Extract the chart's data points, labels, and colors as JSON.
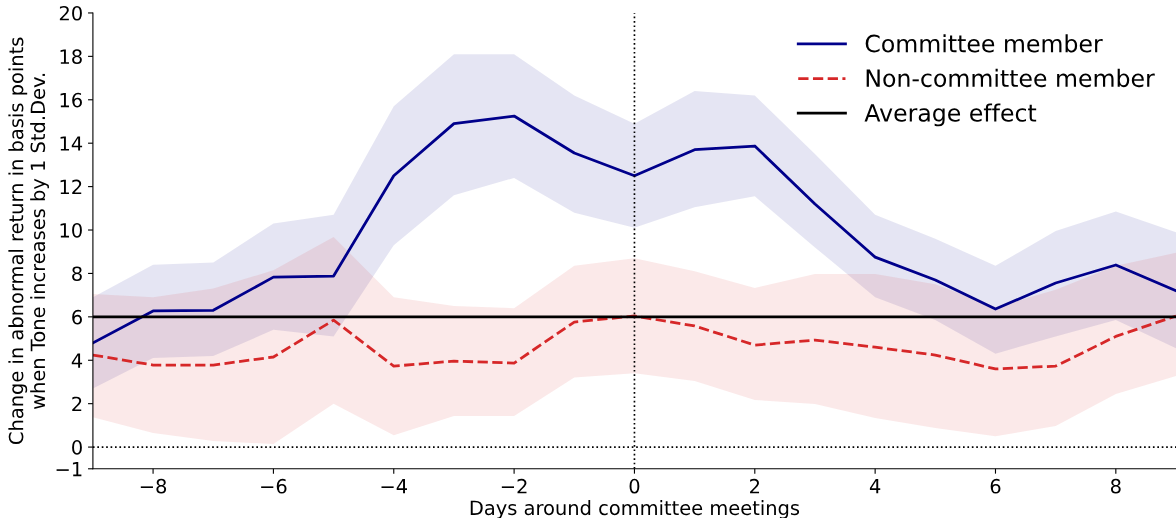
{
  "chart_data": {
    "type": "line",
    "xlabel": "Days around committee meetings",
    "ylabel": "Change in abnormal return in basis points\nwhen Tone increases by 1 Std.Dev.",
    "x": [
      -9,
      -8,
      -7,
      -6,
      -5,
      -4,
      -3,
      -2,
      -1,
      0,
      1,
      2,
      3,
      4,
      5,
      6,
      7,
      8,
      9
    ],
    "series": [
      {
        "name": "Committee member",
        "color": "#00008b",
        "line_style": "solid",
        "values": [
          4.8,
          6.27,
          6.3,
          7.83,
          7.88,
          12.5,
          14.9,
          15.25,
          13.55,
          12.5,
          13.7,
          13.87,
          11.2,
          8.75,
          7.7,
          6.36,
          7.56,
          8.39,
          7.2
        ],
        "lower": [
          2.7,
          4.1,
          4.2,
          5.4,
          5.1,
          9.3,
          11.6,
          12.4,
          10.8,
          10.1,
          11.05,
          11.55,
          9.2,
          6.9,
          5.85,
          4.3,
          5.1,
          5.85,
          4.55
        ],
        "upper": [
          6.9,
          8.4,
          8.5,
          10.3,
          10.7,
          15.7,
          18.1,
          18.1,
          16.2,
          14.9,
          16.4,
          16.2,
          13.5,
          10.7,
          9.6,
          8.35,
          9.95,
          10.85,
          9.9
        ]
      },
      {
        "name": "Non-committee member",
        "color": "#d62728",
        "line_style": "dashed",
        "values": [
          4.24,
          3.78,
          3.78,
          4.15,
          5.85,
          3.73,
          3.96,
          3.87,
          5.76,
          6.04,
          5.58,
          4.7,
          4.93,
          4.6,
          4.24,
          3.6,
          3.73,
          5.1,
          6.04
        ],
        "lower": [
          1.38,
          0.65,
          0.28,
          0.14,
          2.0,
          0.55,
          1.43,
          1.43,
          3.2,
          3.4,
          3.04,
          2.17,
          1.98,
          1.34,
          0.88,
          0.5,
          0.97,
          2.44,
          3.27
        ],
        "upper": [
          7.05,
          6.9,
          7.3,
          8.15,
          9.68,
          6.9,
          6.5,
          6.4,
          8.35,
          8.7,
          8.1,
          7.33,
          7.97,
          7.97,
          7.5,
          6.45,
          7.25,
          8.35,
          8.95
        ]
      }
    ],
    "ref_lines": [
      {
        "axis": "y",
        "value": 6,
        "label": "Average effect",
        "color": "#000000",
        "line_style": "solid"
      },
      {
        "axis": "y",
        "value": 0,
        "color": "#000000",
        "line_style": "dotted"
      },
      {
        "axis": "x",
        "value": 0,
        "color": "#000000",
        "line_style": "dotted"
      }
    ],
    "xlim": [
      -9,
      9
    ],
    "xticks": [
      -8,
      -6,
      -4,
      -2,
      0,
      2,
      4,
      6,
      8
    ],
    "ylim": [
      -1,
      20
    ],
    "yticks": [
      -1,
      0,
      2,
      4,
      6,
      8,
      10,
      12,
      14,
      16,
      18,
      20
    ],
    "grid": false,
    "legend": "top right",
    "marker": "none"
  }
}
